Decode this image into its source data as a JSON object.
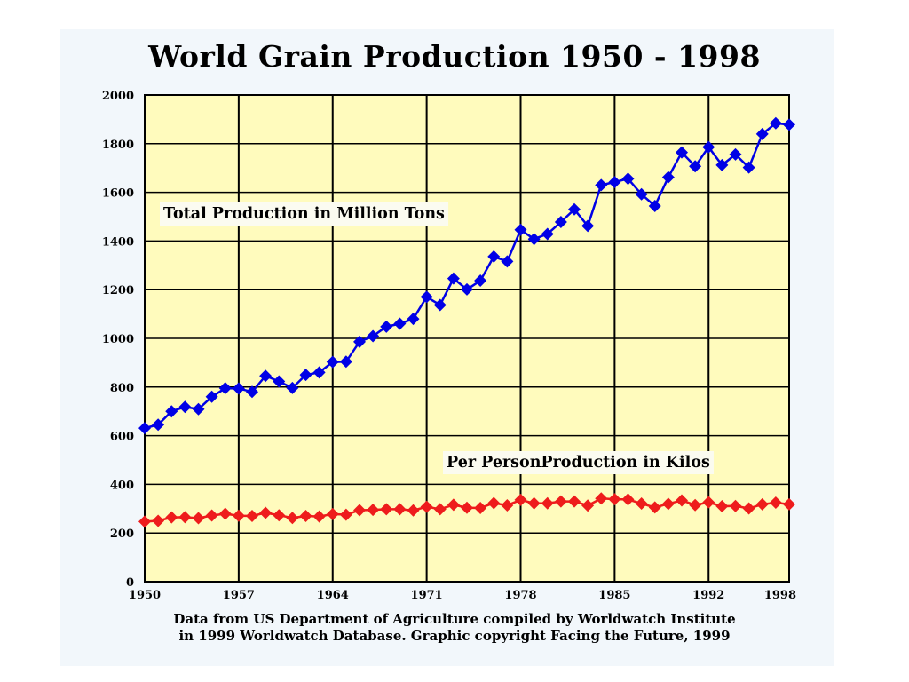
{
  "chart_data": {
    "type": "line",
    "title": "World Grain Production 1950 - 1998",
    "x": [
      1950,
      1951,
      1952,
      1953,
      1954,
      1955,
      1956,
      1957,
      1958,
      1959,
      1960,
      1961,
      1962,
      1963,
      1964,
      1965,
      1966,
      1967,
      1968,
      1969,
      1970,
      1971,
      1972,
      1973,
      1974,
      1975,
      1976,
      1977,
      1978,
      1979,
      1980,
      1981,
      1982,
      1983,
      1984,
      1985,
      1986,
      1987,
      1988,
      1989,
      1990,
      1991,
      1992,
      1993,
      1994,
      1995,
      1996,
      1997,
      1998
    ],
    "series": [
      {
        "name": "Total Production in Million Tons",
        "color": "#0000e6",
        "marker": "diamond",
        "values": [
          631,
          645,
          700,
          718,
          709,
          760,
          795,
          794,
          780,
          846,
          823,
          796,
          850,
          860,
          903,
          904,
          986,
          1009,
          1048,
          1060,
          1080,
          1170,
          1137,
          1246,
          1201,
          1237,
          1336,
          1316,
          1446,
          1408,
          1429,
          1478,
          1530,
          1462,
          1630,
          1642,
          1656,
          1592,
          1544,
          1662,
          1764,
          1707,
          1786,
          1712,
          1756,
          1702,
          1840,
          1884,
          1878
        ]
      },
      {
        "name": "Per PersonProduction in Kilos",
        "color": "#ee1c1c",
        "marker": "diamond",
        "values": [
          247,
          250,
          264,
          265,
          261,
          272,
          279,
          271,
          270,
          283,
          273,
          262,
          270,
          268,
          278,
          275,
          294,
          295,
          298,
          298,
          293,
          308,
          298,
          316,
          304,
          303,
          323,
          314,
          336,
          322,
          322,
          330,
          330,
          313,
          342,
          339,
          338,
          321,
          305,
          320,
          334,
          315,
          326,
          310,
          311,
          301,
          318,
          325,
          318
        ]
      }
    ],
    "x_ticks": [
      "1950",
      "1957",
      "1964",
      "1971",
      "1978",
      "1985",
      "1992",
      "1998"
    ],
    "y_ticks": [
      "0",
      "200",
      "400",
      "600",
      "800",
      "1000",
      "1200",
      "1400",
      "1600",
      "1800",
      "2000"
    ],
    "xlim": [
      1950,
      1998
    ],
    "ylim": [
      0,
      2000
    ],
    "xlabel": "",
    "ylabel": "",
    "grid": true,
    "plot_background": "#fffbbd",
    "footnote_lines": [
      "Data from US Department of Agriculture compiled by Worldwatch Institute",
      "in 1999 Worldwatch Database.  Graphic copyright Facing the Future, 1999"
    ]
  }
}
